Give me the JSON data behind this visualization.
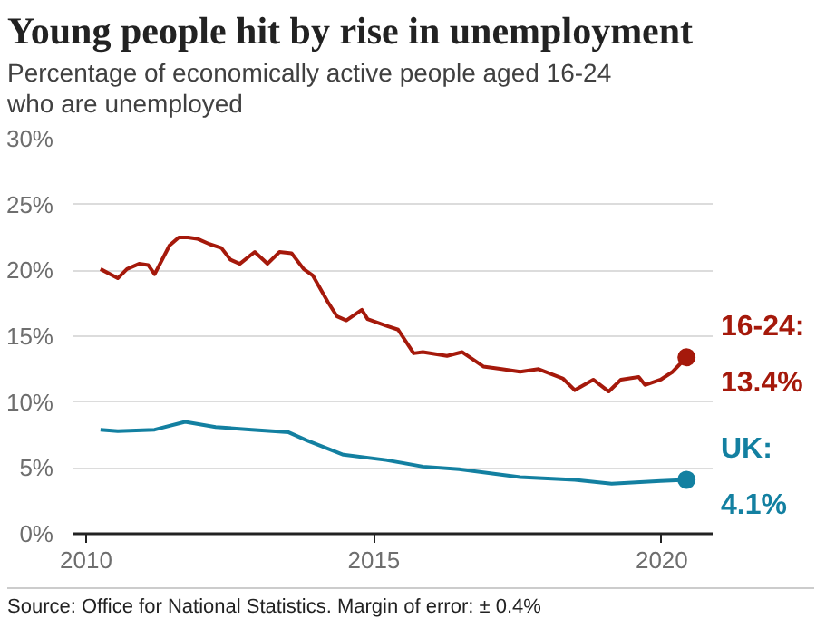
{
  "chart_data": {
    "type": "line",
    "title": "Young people hit by rise in unemployment",
    "subtitle": "Percentage of economically active people aged 16-24\nwho are unemployed",
    "annotations": [
      "Source: Office for National Statistics. Margin of error: ± 0.4%"
    ],
    "xlim": [
      2009.78,
      2020.9
    ],
    "xticks": [
      2010,
      2015,
      2020
    ],
    "ylim": [
      0,
      30
    ],
    "yticks": [
      {
        "value": 0,
        "label": "0%"
      },
      {
        "value": 5,
        "label": "5%"
      },
      {
        "value": 10,
        "label": "10%"
      },
      {
        "value": 15,
        "label": "15%"
      },
      {
        "value": 20,
        "label": "20%"
      },
      {
        "value": 25,
        "label": "25%"
      },
      {
        "value": 30,
        "label": "30%"
      }
    ],
    "grid": "y",
    "legend": false,
    "line_style": "solid",
    "series": [
      {
        "name": "16-24:",
        "color": "#a5190b",
        "x": [
          2010.25,
          2010.55,
          2010.71,
          2010.92,
          2011.08,
          2011.19,
          2011.45,
          2011.61,
          2011.77,
          2011.93,
          2012.14,
          2012.35,
          2012.51,
          2012.67,
          2012.93,
          2013.15,
          2013.36,
          2013.57,
          2013.78,
          2013.94,
          2014.2,
          2014.36,
          2014.52,
          2014.79,
          2014.89,
          2015.21,
          2015.42,
          2015.69,
          2015.85,
          2016.27,
          2016.53,
          2016.9,
          2017.22,
          2017.54,
          2017.86,
          2018.28,
          2018.49,
          2018.81,
          2019.08,
          2019.29,
          2019.6,
          2019.71,
          2019.98,
          2020.19,
          2020.43
        ],
        "values": [
          20.1,
          19.4,
          20.1,
          20.5,
          20.4,
          19.7,
          21.9,
          22.5,
          22.5,
          22.4,
          22.0,
          21.7,
          20.8,
          20.5,
          21.4,
          20.5,
          21.4,
          21.3,
          20.1,
          19.6,
          17.6,
          16.5,
          16.2,
          17.0,
          16.3,
          15.8,
          15.5,
          13.7,
          13.8,
          13.5,
          13.8,
          12.7,
          12.5,
          12.3,
          12.5,
          11.8,
          10.9,
          11.7,
          10.8,
          11.7,
          11.9,
          11.3,
          11.7,
          12.3,
          13.4
        ],
        "value_labels": [
          null,
          null,
          null,
          null,
          null,
          null,
          null,
          null,
          null,
          null,
          null,
          null,
          null,
          null,
          null,
          null,
          null,
          null,
          null,
          null,
          null,
          null,
          null,
          null,
          null,
          null,
          null,
          null,
          null,
          null,
          null,
          null,
          null,
          null,
          null,
          null,
          null,
          null,
          null,
          null,
          null,
          null,
          null,
          null,
          "13.4%"
        ]
      },
      {
        "name": "UK:",
        "color": "#1380a1",
        "x": [
          2010.25,
          2010.55,
          2011.19,
          2011.72,
          2012.25,
          2012.88,
          2013.52,
          2013.83,
          2014.47,
          2015.21,
          2015.85,
          2016.48,
          2017.54,
          2018.49,
          2019.13,
          2019.98,
          2020.43
        ],
        "values": [
          7.9,
          7.8,
          7.9,
          8.5,
          8.1,
          7.9,
          7.7,
          7.1,
          6.0,
          5.6,
          5.1,
          4.9,
          4.3,
          4.1,
          3.8,
          4.0,
          4.1
        ],
        "value_labels": [
          null,
          null,
          null,
          null,
          null,
          null,
          null,
          null,
          null,
          null,
          null,
          null,
          null,
          null,
          null,
          null,
          "4.1%"
        ]
      }
    ]
  }
}
